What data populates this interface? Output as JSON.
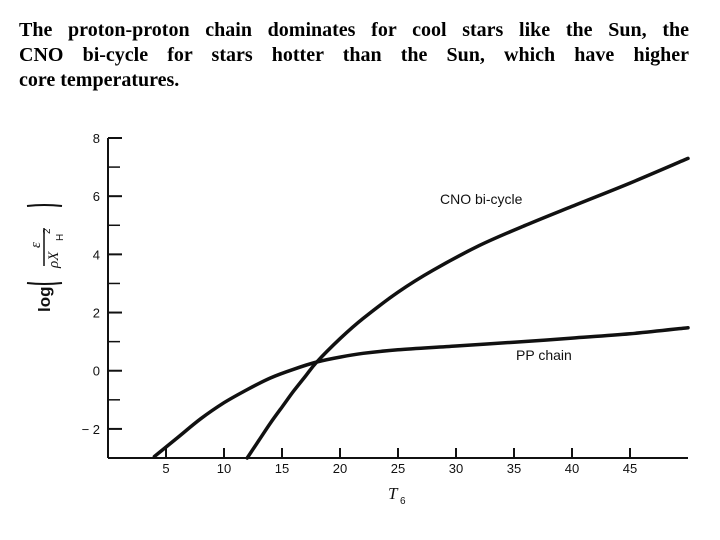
{
  "caption": {
    "line1": "The proton-proton chain dominates for cool stars like the Sun, the",
    "line2": "CNO bi-cycle for stars hotter than the Sun, which have higher",
    "line3": "core temperatures."
  },
  "chart_data": {
    "type": "line",
    "title": "",
    "xlabel": "T",
    "xlabel_subscript": "6",
    "ylabel": {
      "log": "log",
      "numerator": "ε",
      "denominator": "ρX",
      "denominator_sub": "H",
      "denominator_sup": "2"
    },
    "xlim": [
      0,
      50
    ],
    "ylim": [
      -3,
      8
    ],
    "x_ticks": [
      5,
      10,
      15,
      20,
      25,
      30,
      35,
      40,
      45
    ],
    "x_tick_labels": [
      "5",
      "10",
      "15",
      "20",
      "25",
      "30",
      "35",
      "40",
      "45"
    ],
    "y_ticks": [
      8,
      6,
      4,
      2,
      0,
      -2
    ],
    "y_tick_labels": [
      "8",
      "6",
      "4",
      "2",
      "0",
      "− 2"
    ],
    "grid": false,
    "series": [
      {
        "name": "PP chain",
        "x": [
          4,
          6,
          8,
          10,
          12,
          14,
          16,
          18,
          20,
          22,
          25,
          30,
          35,
          40,
          45,
          50
        ],
        "y": [
          -2.95,
          -2.3,
          -1.65,
          -1.1,
          -0.65,
          -0.25,
          0.05,
          0.3,
          0.47,
          0.6,
          0.72,
          0.85,
          0.98,
          1.12,
          1.27,
          1.48
        ]
      },
      {
        "name": "CNO bi-cycle",
        "x": [
          12,
          13,
          14,
          15,
          16,
          17,
          18,
          20,
          22,
          25,
          28,
          32,
          36,
          40,
          45,
          50
        ],
        "y": [
          -3.0,
          -2.4,
          -1.8,
          -1.25,
          -0.7,
          -0.2,
          0.3,
          1.1,
          1.8,
          2.7,
          3.45,
          4.3,
          5.0,
          5.65,
          6.45,
          7.3
        ]
      }
    ]
  }
}
